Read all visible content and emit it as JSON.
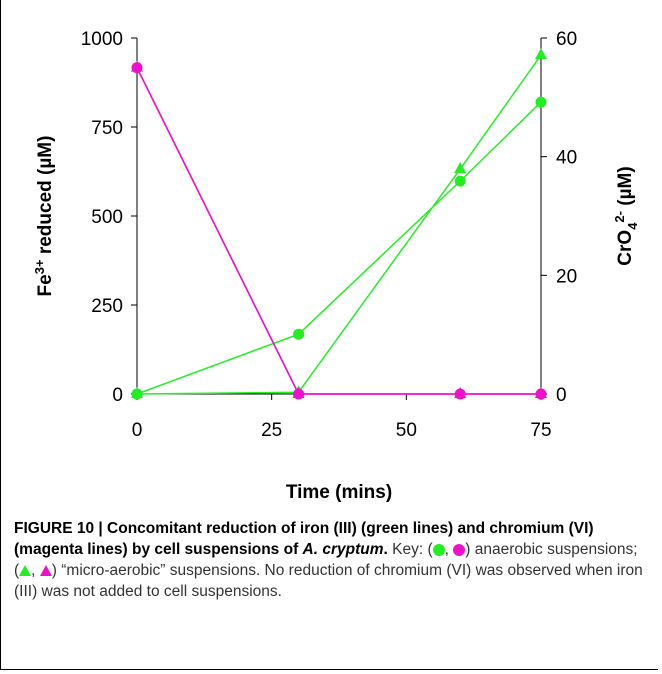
{
  "chart_data": {
    "type": "line",
    "x": [
      0,
      30,
      60,
      75
    ],
    "xlim": [
      0,
      75
    ],
    "xticks": [
      "0",
      "25",
      "50",
      "75"
    ],
    "xlabel": "Time (mins)",
    "y_left": {
      "label_parts": [
        "Fe",
        "3+",
        " reduced (µM)"
      ],
      "lim": [
        0,
        1000
      ],
      "ticks": [
        "0",
        "250",
        "500",
        "750",
        "1000"
      ]
    },
    "y_right": {
      "label_parts": [
        "CrO",
        "4",
        "2-",
        " (µM)"
      ],
      "lim": [
        0,
        60
      ],
      "ticks": [
        "0",
        "20",
        "40",
        "60"
      ]
    },
    "series": [
      {
        "axis": "left",
        "color": "#22ee22",
        "marker": "circle",
        "values": [
          0,
          168,
          598,
          820
        ]
      },
      {
        "axis": "left",
        "color": "#22ee22",
        "marker": "triangle",
        "values": [
          0,
          5,
          632,
          952
        ]
      },
      {
        "axis": "right",
        "color": "#ee11cc",
        "marker": "circle",
        "values": [
          55,
          0,
          0,
          0
        ]
      },
      {
        "axis": "right",
        "color": "#ee11cc",
        "marker": "triangle",
        "values": [
          55,
          0,
          0,
          0
        ]
      }
    ],
    "grid": false
  },
  "caption": {
    "label": "FIGURE 10 | Concomitant reduction of iron (III) (green lines) and chromium (VI) (magenta lines) by cell suspensions of ",
    "species": "A. cryptum",
    "period": ".",
    "key": " Key:",
    "comma": ", ",
    "open": "(",
    "anaerobic": ") anaerobic suspensions; (",
    "microaerobic": ") “micro-aerobic” suspensions. No reduction of chromium (VI) was observed when iron (III) was not added to cell suspensions."
  },
  "colors": {
    "green": "#22ee22",
    "magenta": "#ee11cc"
  }
}
